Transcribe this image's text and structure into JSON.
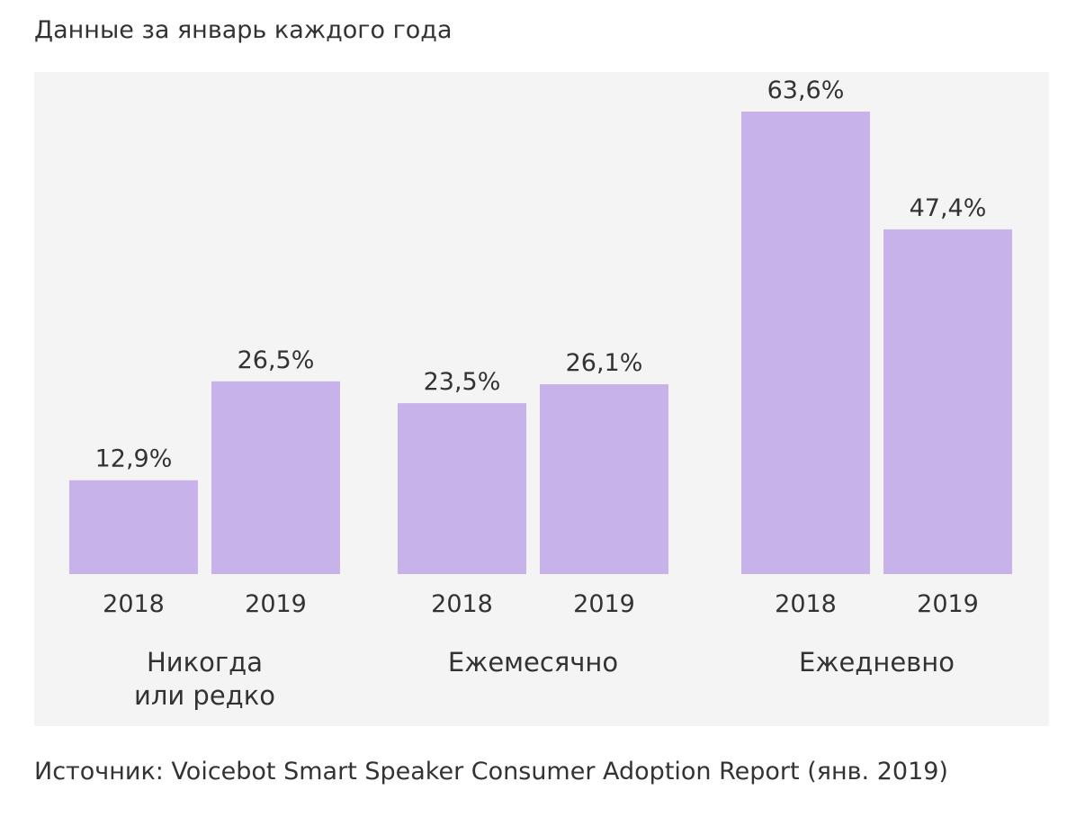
{
  "header": {
    "subtitle": "Данные за январь каждого года"
  },
  "footer": {
    "source": "Источник: Voicebot Smart Speaker Consumer Adoption Report (янв. 2019)"
  },
  "colors": {
    "bar": "#c7b3ea",
    "panel_background": "#f4f4f4",
    "text": "#333333"
  },
  "chart_data": {
    "type": "bar",
    "categories": [
      [
        "Никогда",
        "или редко"
      ],
      [
        "Ежемесячно"
      ],
      [
        "Ежедневно"
      ]
    ],
    "series_labels": [
      "2018",
      "2019"
    ],
    "values": [
      [
        12.9,
        26.5
      ],
      [
        23.5,
        26.1
      ],
      [
        63.6,
        47.4
      ]
    ],
    "value_labels": [
      [
        "12,9%",
        "26,5%"
      ],
      [
        "23,5%",
        "26,1%"
      ],
      [
        "63,6%",
        "47,4%"
      ]
    ],
    "ylim": [
      0,
      70
    ],
    "grid": false,
    "legend": "none"
  }
}
